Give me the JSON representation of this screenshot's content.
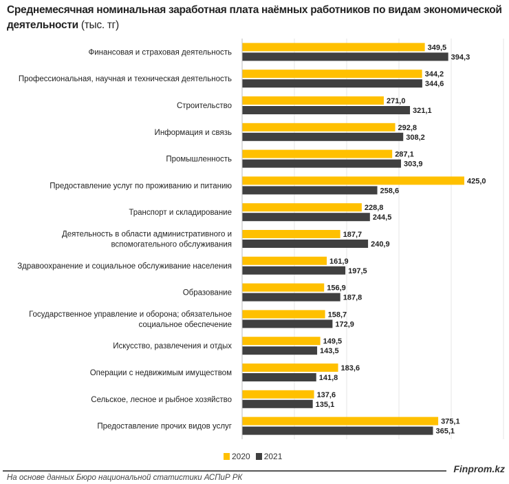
{
  "chart_data": {
    "type": "bar",
    "orientation": "horizontal",
    "title": "Среднемесячная номинальная заработная плата наёмных работников по видам экономической деятельности",
    "unit": "(тыс. тг)",
    "categories": [
      "Финансовая и страховая деятельность",
      "Профессиональная, научная и техническая деятельность",
      "Строительство",
      "Информация и связь",
      "Промышленность",
      "Предоставление услуг по проживанию и питанию",
      "Транспорт и складирование",
      "Деятельность в области административного и вспомогательного обслуживания",
      "Здравоохранение и социальное обслуживание населения",
      "Образование",
      "Государственное управление и оборона; обязательное социальное обеспечение",
      "Искусство, развлечения и отдых",
      "Операции с недвижимым имуществом",
      "Сельское, лесное и рыбное хозяйство",
      "Предоставление прочих видов услуг"
    ],
    "series": [
      {
        "name": "2020",
        "color": "#FFC000",
        "values": [
          349.5,
          344.2,
          271.0,
          292.8,
          287.1,
          425.0,
          228.8,
          187.7,
          161.9,
          156.9,
          158.7,
          149.5,
          183.6,
          137.6,
          375.1
        ]
      },
      {
        "name": "2021",
        "color": "#404040",
        "values": [
          394.3,
          344.6,
          321.1,
          308.2,
          303.9,
          258.6,
          244.5,
          240.9,
          197.5,
          187.8,
          172.9,
          143.5,
          141.8,
          135.1,
          365.1
        ]
      }
    ],
    "xlim": [
      0,
      500
    ],
    "grid": true,
    "legend": "bottom"
  },
  "footer": {
    "brand": "Finprom.kz",
    "source": "На основе данных Бюро национальной статистики АСПиР РК"
  }
}
